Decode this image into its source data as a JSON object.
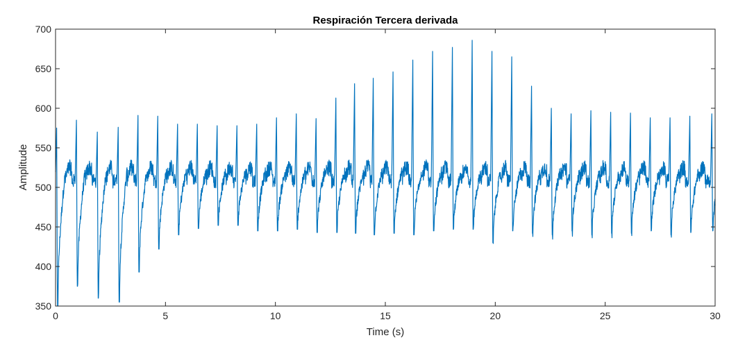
{
  "chart_data": {
    "type": "line",
    "title": "Respiración Tercera derivada",
    "xlabel": "Time (s)",
    "ylabel": "Amplitude",
    "xlim": [
      0,
      30
    ],
    "ylim": [
      350,
      700
    ],
    "x_ticks": [
      0,
      5,
      10,
      15,
      20,
      25,
      30
    ],
    "y_ticks": [
      350,
      400,
      450,
      500,
      550,
      600,
      650,
      700
    ],
    "grid": false,
    "line_color": "#0072BD",
    "series": [
      {
        "beat_times_s": [
          0.05,
          0.95,
          1.9,
          2.85,
          3.75,
          4.65,
          5.55,
          6.45,
          7.35,
          8.25,
          9.15,
          10.05,
          10.95,
          11.85,
          12.75,
          13.6,
          14.45,
          15.35,
          16.25,
          17.15,
          18.05,
          18.95,
          19.85,
          20.75,
          21.65,
          22.55,
          23.45,
          24.35,
          25.25,
          26.15,
          27.05,
          27.95,
          28.85,
          29.85
        ],
        "peak_values": [
          575,
          585,
          570,
          576,
          591,
          590,
          580,
          580,
          578,
          578,
          580,
          588,
          593,
          587,
          613,
          631,
          638,
          646,
          661,
          672,
          677,
          686,
          672,
          665,
          628,
          600,
          593,
          597,
          595,
          594,
          588,
          588,
          590,
          593
        ],
        "trough_values": [
          350,
          375,
          360,
          355,
          393,
          422,
          440,
          448,
          452,
          452,
          445,
          445,
          447,
          443,
          443,
          442,
          440,
          442,
          440,
          445,
          447,
          447,
          430,
          445,
          442,
          440,
          445,
          440,
          442,
          442,
          445,
          440,
          443,
          445
        ]
      }
    ]
  }
}
